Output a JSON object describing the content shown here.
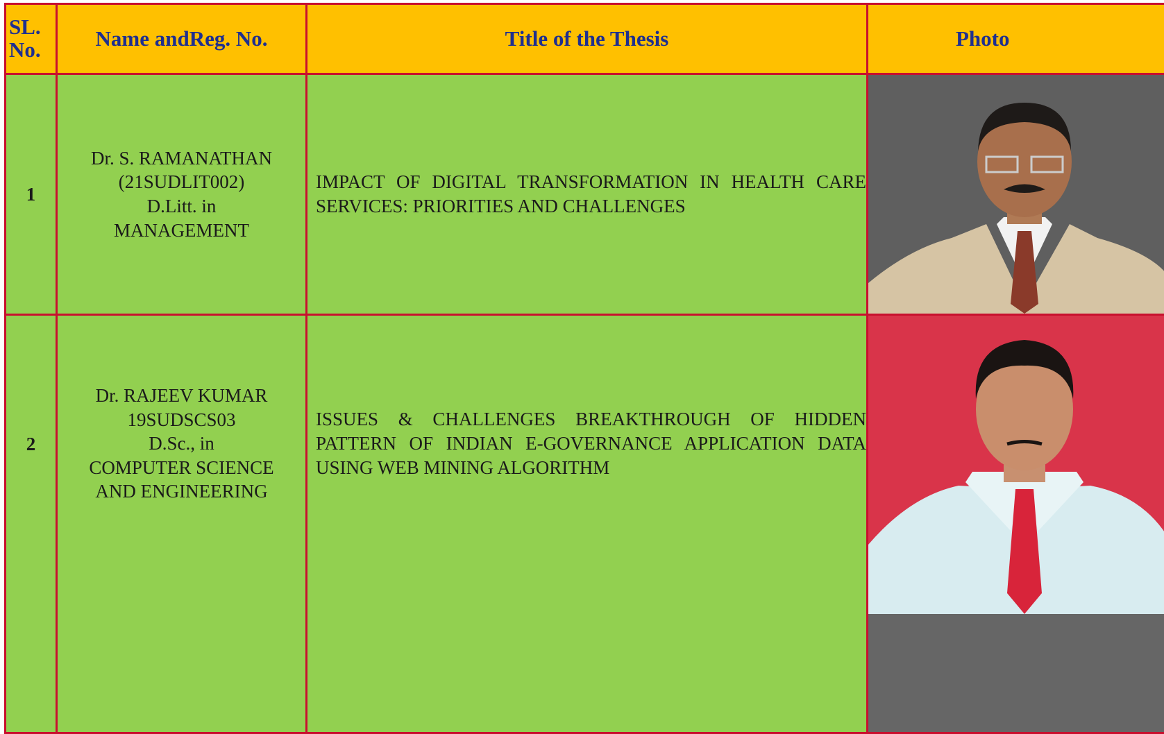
{
  "table": {
    "header": [
      "SL. No.",
      "Name andReg. No.",
      "Title of the Thesis",
      "Photo"
    ],
    "rows": [
      {
        "sl": "1",
        "name": [
          "Dr. S. RAMANATHAN",
          "(21SUDLIT002)",
          "D.Litt. in",
          "MANAGEMENT"
        ],
        "title": "IMPACT OF DIGITAL TRANSFORMATION IN HEALTH CARE SERVICES: PRIORITIES AND CHALLENGES"
      },
      {
        "sl": "2",
        "name": [
          "Dr. RAJEEV KUMAR",
          "19SUDSCS03",
          "D.Sc., in",
          "COMPUTER SCIENCE",
          "AND ENGINEERING"
        ],
        "title": "ISSUES & CHALLENGES BREAKTHROUGH OF HIDDEN PATTERN OF INDIAN E-GOVERNANCE APPLICATION DATA USING WEB MINING ALGORITHM"
      }
    ]
  }
}
